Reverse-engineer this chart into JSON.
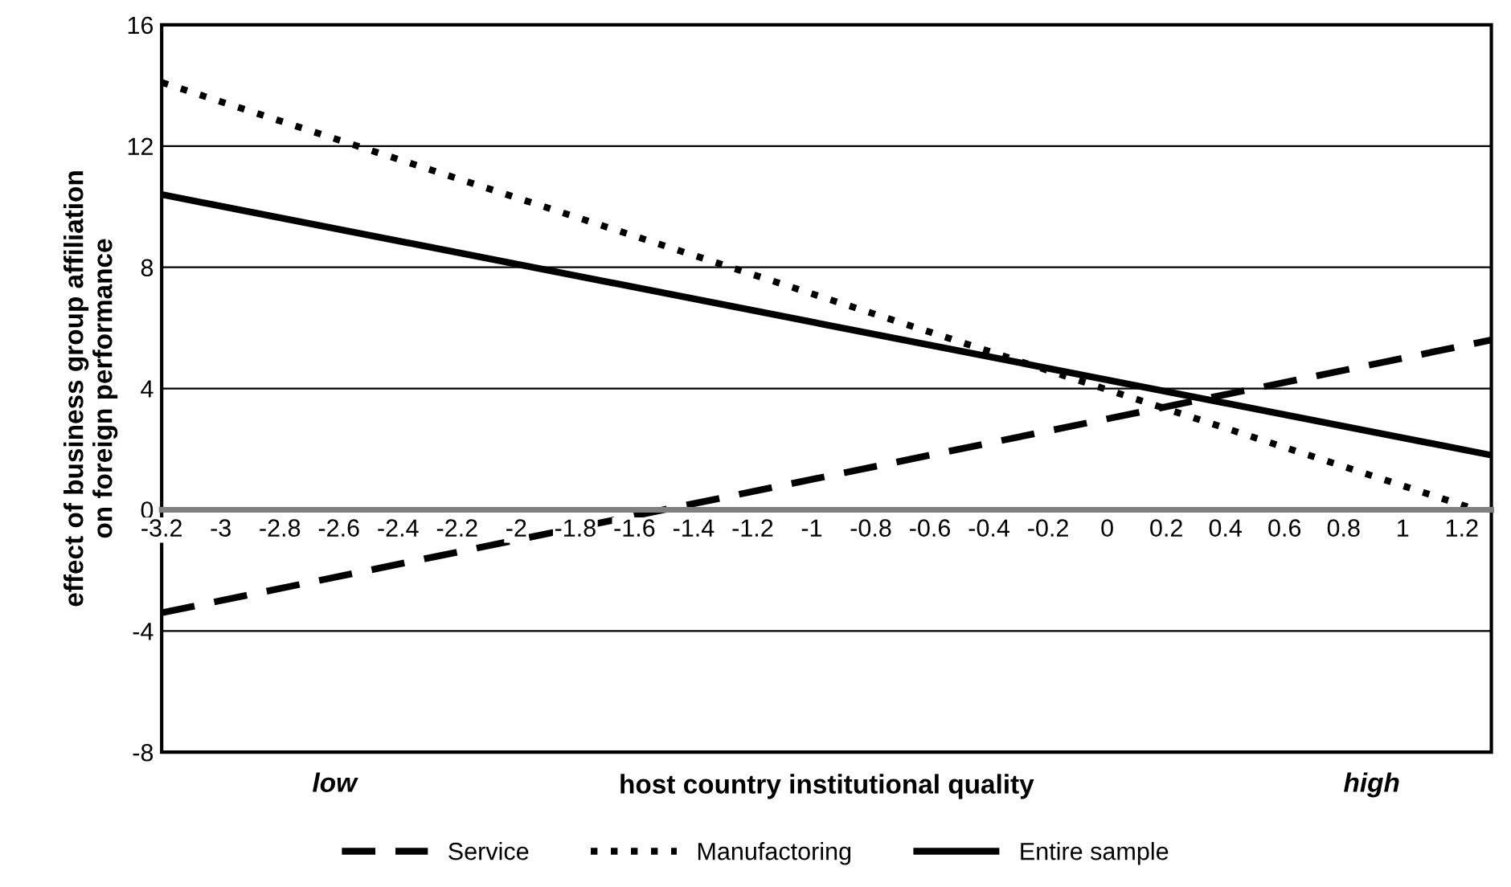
{
  "chart_data": {
    "type": "line",
    "xlabel": "host country institutional quality",
    "ylabel": "effect of business group affiliation\non foreign performance",
    "xlim": [
      -3.2,
      1.3
    ],
    "xticks": [
      -3.2,
      -3,
      -2.8,
      -2.6,
      -2.4,
      -2.2,
      -2,
      -1.8,
      -1.6,
      -1.4,
      -1.2,
      -1,
      -0.8,
      -0.6,
      -0.4,
      -0.2,
      0,
      0.2,
      0.4,
      0.6,
      0.8,
      1,
      1.2
    ],
    "ylim": [
      -8,
      16
    ],
    "yticks": [
      -8,
      -4,
      0,
      4,
      8,
      12,
      16
    ],
    "grid": "y",
    "legend": "bottom",
    "marker": "none",
    "annotations": [
      "low",
      "high"
    ],
    "series": [
      {
        "name": "Service",
        "color": "#000000",
        "line_style": "dashed",
        "x": [
          -3.2,
          1.3
        ],
        "values": [
          -3.4,
          5.6
        ]
      },
      {
        "name": "Manufactoring",
        "color": "#000000",
        "line_style": "dotted",
        "x": [
          -3.2,
          1.25
        ],
        "values": [
          14.1,
          0
        ]
      },
      {
        "name": "Entire sample",
        "color": "#000000",
        "line_style": "solid",
        "x": [
          -3.2,
          1.3
        ],
        "values": [
          10.4,
          1.8
        ]
      }
    ]
  }
}
